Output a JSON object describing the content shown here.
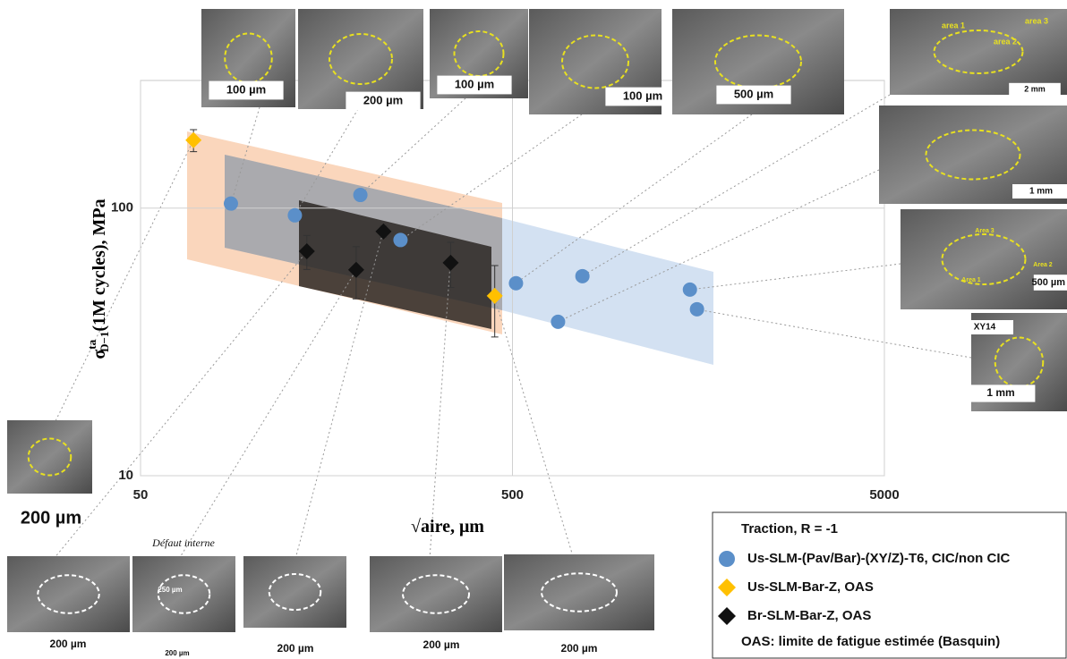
{
  "chart_data": {
    "type": "scatter",
    "xlabel": {
      "root": "√",
      "text": "aire, μm"
    },
    "ylabel": {
      "symbol": "σ",
      "superscript": "ta",
      "subscript": "D−1",
      "text": "(1M cycles), MPa"
    },
    "xlim": [
      50,
      5000
    ],
    "ylim": [
      10,
      300
    ],
    "xticks": [
      50,
      500,
      5000
    ],
    "yticks": [
      10,
      100
    ],
    "log_x": true,
    "log_y": true,
    "grid": true,
    "legend_position": "lower right",
    "legend": {
      "title": "Traction, R = -1",
      "note": "OAS: limite de fatigue estimée (Basquin)"
    },
    "series": [
      {
        "name": "Us-SLM-(Pav/Bar)-(XY/Z)-T6,  CIC/non CIC",
        "color": "#5b8fc9",
        "marker": "circle",
        "x": [
          87.5,
          130,
          195,
          250,
          511,
          663,
          771,
          1500,
          1567
        ],
        "values": [
          104,
          94,
          112,
          76,
          52.4,
          37.6,
          55.7,
          49.6,
          41.9
        ]
      },
      {
        "name": "Us-SLM-Bar-Z, OAS",
        "color": "#ffc000",
        "marker": "diamond",
        "x": [
          69.4,
          448
        ],
        "values": [
          179.5,
          47
        ],
        "yerr": [
          17,
          14
        ]
      },
      {
        "name": "Br-SLM-Bar-Z, OAS",
        "color": "#111111",
        "marker": "diamond",
        "x": [
          140,
          190,
          225,
          341
        ],
        "values": [
          69,
          58.8,
          81.8,
          62.5
        ],
        "yerr": [
          10,
          13,
          4,
          12
        ]
      }
    ]
  },
  "insets": [
    {
      "labels": [
        "100 µm"
      ]
    },
    {
      "labels": [
        "200 µm"
      ]
    },
    {
      "labels": [
        "100 µm"
      ]
    },
    {
      "labels": [
        "100 µm"
      ]
    },
    {
      "labels": [
        "500 µm"
      ]
    },
    {
      "labels": [
        "area 1",
        "area 3",
        "area 2",
        "2 mm"
      ]
    },
    {
      "labels": [
        "1 mm"
      ]
    },
    {
      "labels": [
        "Area 3",
        "Area 2",
        "Area 1",
        "500 µm"
      ]
    },
    {
      "labels": [
        "XY14",
        "1 mm"
      ]
    },
    {
      "labels": [
        "200 µm"
      ]
    },
    {
      "labels": [
        "200 µm"
      ]
    },
    {
      "labels": [
        "Défaut interne",
        "250 µm",
        "200 µm"
      ]
    },
    {
      "labels": [
        "200 µm"
      ]
    },
    {
      "labels": [
        "200 µm"
      ]
    },
    {
      "labels": [
        "200 µm"
      ]
    }
  ]
}
